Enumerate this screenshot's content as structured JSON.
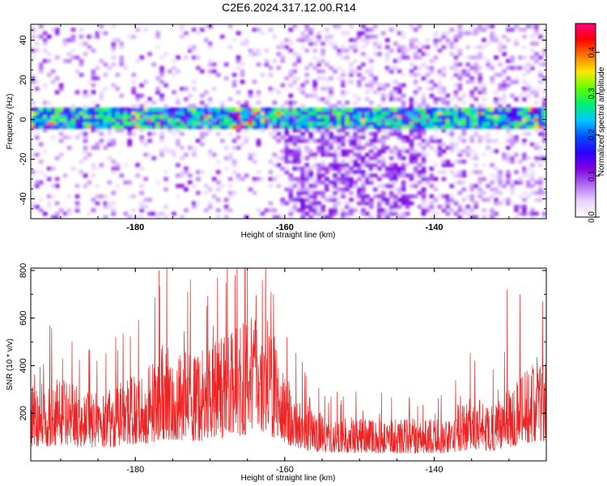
{
  "title": "C2E6.2024.317.12.00.R14",
  "chart_data": [
    {
      "type": "heatmap",
      "xlabel": "Height of straight line (km)",
      "ylabel": "Frequency (Hz)",
      "xlim": [
        -194,
        -125
      ],
      "ylim": [
        -50,
        48
      ],
      "x_ticks": [
        "-180",
        "-160",
        "-140"
      ],
      "y_ticks": [
        "40",
        "20",
        "0",
        "-20",
        "-40"
      ],
      "colorbar": {
        "label": "Normalized spectral amplitude",
        "range": [
          0.0,
          0.47
        ],
        "ticks": [
          "0.0",
          "0.1",
          "0.2",
          "0.3",
          "0.4"
        ],
        "colors": [
          "#ffffff",
          "#e8d2ff",
          "#b06cf2",
          "#8000e0",
          "#2a00ff",
          "#0050ff",
          "#00c8ff",
          "#00f070",
          "#60ff00",
          "#ffe800",
          "#ff7a00",
          "#ff0000",
          "#ff0080"
        ]
      },
      "dominant_band": {
        "frequency_hz": 0,
        "from_km": -194,
        "to_km": -125,
        "peak_amplitude": 0.45
      }
    },
    {
      "type": "line",
      "xlabel": "Height of straight line (km)",
      "ylabel": "SNR (10 * v/v)",
      "xlim": [
        -194,
        -125
      ],
      "ylim": [
        0,
        810
      ],
      "x_ticks": [
        "-180",
        "-160",
        "-140"
      ],
      "y_ticks": [
        "800",
        "600",
        "400",
        "200"
      ],
      "line_color": "#ee2222",
      "envelope": {
        "x": [
          -194,
          -190,
          -186,
          -182,
          -178,
          -176,
          -172,
          -168,
          -165,
          -162,
          -160,
          -158,
          -156,
          -154,
          -150,
          -146,
          -142,
          -138,
          -135,
          -132,
          -129,
          -126,
          -125
        ],
        "y": [
          230,
          250,
          210,
          240,
          300,
          360,
          320,
          380,
          440,
          420,
          300,
          190,
          150,
          140,
          130,
          125,
          130,
          120,
          200,
          160,
          250,
          340,
          300
        ]
      },
      "peaks": [
        {
          "x": -176.8,
          "y": 800
        },
        {
          "x": -165,
          "y": 810
        },
        {
          "x": -163,
          "y": 760
        },
        {
          "x": -161.5,
          "y": 700
        },
        {
          "x": -130.2,
          "y": 720
        },
        {
          "x": -128.5,
          "y": 700
        },
        {
          "x": -125.5,
          "y": 670
        }
      ]
    }
  ]
}
